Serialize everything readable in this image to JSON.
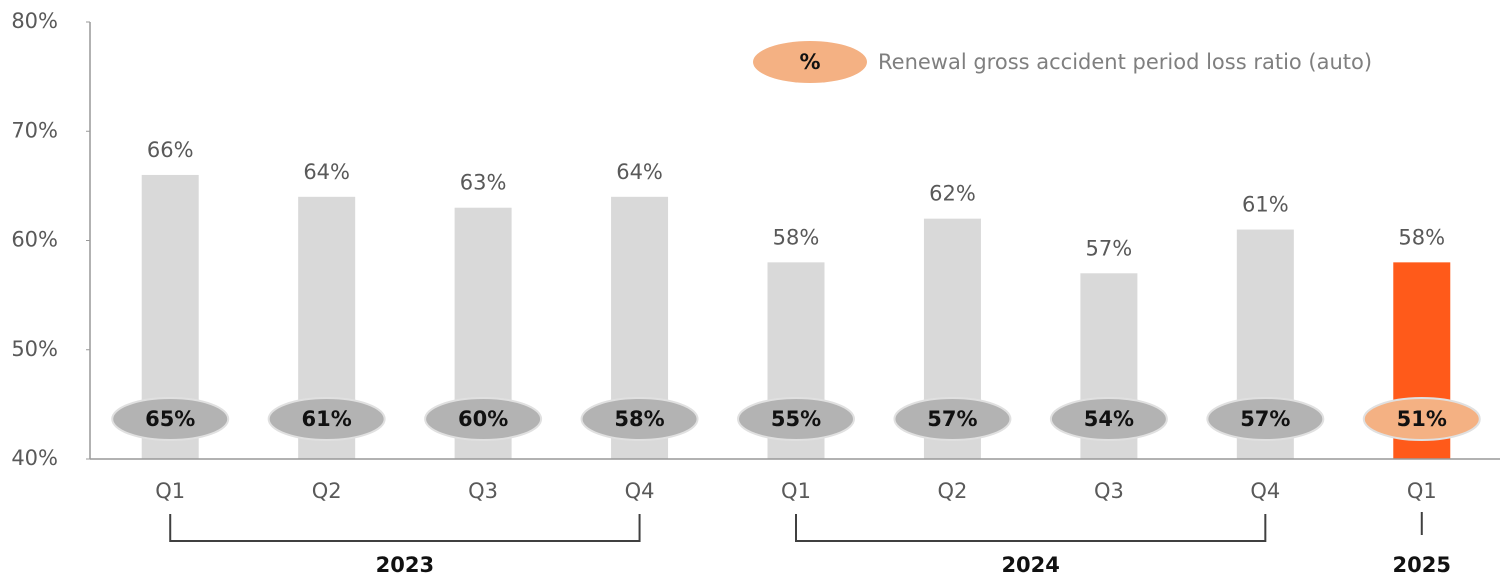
{
  "chart_data": {
    "type": "bar",
    "groups": [
      {
        "name": "2023",
        "categories": [
          "Q1",
          "Q2",
          "Q3",
          "Q4"
        ]
      },
      {
        "name": "2024",
        "categories": [
          "Q1",
          "Q2",
          "Q3",
          "Q4"
        ]
      },
      {
        "name": "2025",
        "categories": [
          "Q1"
        ]
      }
    ],
    "series": [
      {
        "values": [
          66,
          64,
          63,
          64,
          58,
          62,
          57,
          61,
          58
        ],
        "value_labels": [
          "66%",
          "64%",
          "63%",
          "64%",
          "58%",
          "62%",
          "57%",
          "61%",
          "58%"
        ],
        "colors": [
          "#d9d9d9",
          "#d9d9d9",
          "#d9d9d9",
          "#d9d9d9",
          "#d9d9d9",
          "#d9d9d9",
          "#d9d9d9",
          "#d9d9d9",
          "#ff5a1a"
        ]
      },
      {
        "name": "Renewal gross accident period loss ratio (auto)",
        "legend_symbol": "%",
        "values": [
          65,
          61,
          60,
          58,
          55,
          57,
          54,
          57,
          51
        ],
        "value_labels": [
          "65%",
          "61%",
          "60%",
          "58%",
          "55%",
          "57%",
          "54%",
          "57%",
          "51%"
        ],
        "colors": [
          "#b3b3b3",
          "#b3b3b3",
          "#b3b3b3",
          "#b3b3b3",
          "#b3b3b3",
          "#b3b3b3",
          "#b3b3b3",
          "#b3b3b3",
          "#f4b183"
        ]
      }
    ],
    "ylim": [
      40,
      80
    ],
    "yticks": [
      {
        "value": 40,
        "label": "40%"
      },
      {
        "value": 50,
        "label": "50%"
      },
      {
        "value": 60,
        "label": "60%"
      },
      {
        "value": 70,
        "label": "70%"
      },
      {
        "value": 80,
        "label": "80%"
      }
    ]
  }
}
